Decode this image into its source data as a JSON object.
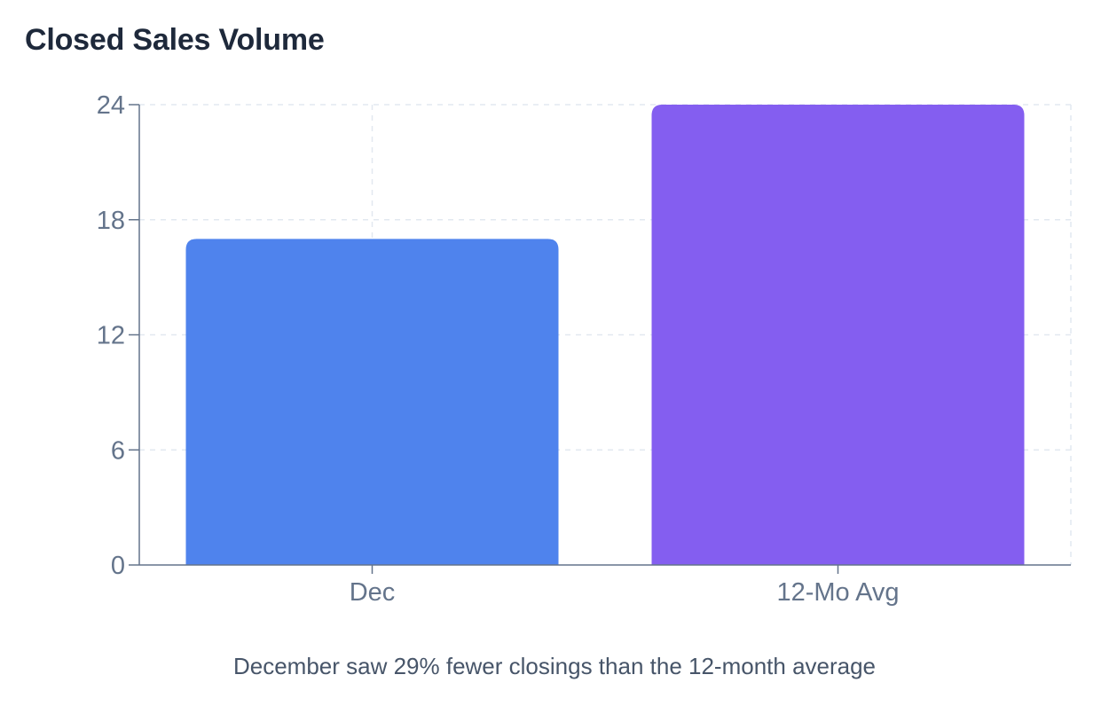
{
  "chart_data": {
    "type": "bar",
    "title": "Closed Sales Volume",
    "categories": [
      "Dec",
      "12-Mo Avg"
    ],
    "values": [
      17,
      24
    ],
    "bar_colors": [
      "#4f83ed",
      "#845ef0"
    ],
    "ylim": [
      0,
      24
    ],
    "yticks": [
      "0",
      "6",
      "12",
      "18",
      "24"
    ],
    "xlabel": "",
    "ylabel": "",
    "grid": true,
    "caption": "December saw 29% fewer closings than the 12-month average"
  }
}
